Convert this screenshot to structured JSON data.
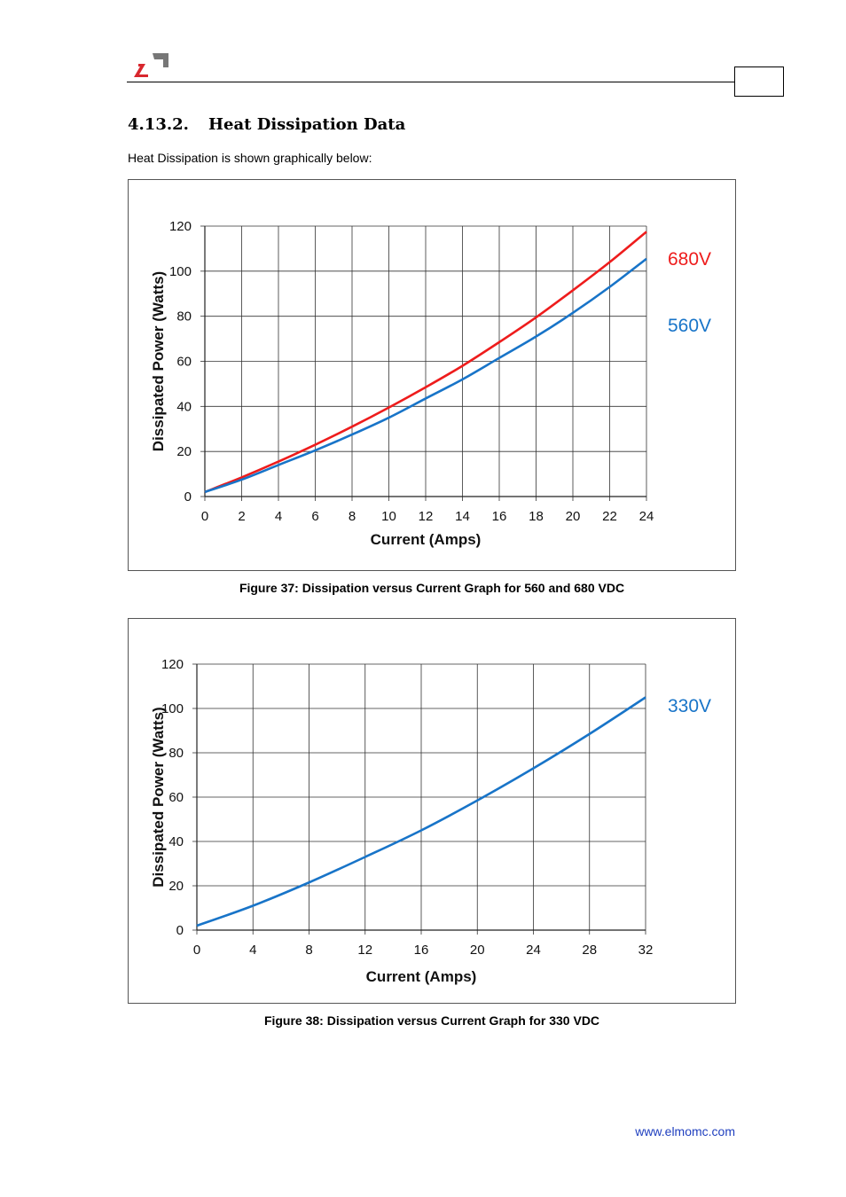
{
  "header": {
    "logo_icon": "elmo-logo-icon",
    "accent_color": "#d8272e",
    "logo_gray": "#777777"
  },
  "section": {
    "number": "4.13.2.",
    "title": "Heat Dissipation Data",
    "intro": "Heat Dissipation is shown graphically below:"
  },
  "captions": {
    "figure37": "Figure 37: Dissipation versus Current Graph for 560 and 680 VDC",
    "figure38": "Figure 38: Dissipation versus Current Graph for 330 VDC"
  },
  "footer": {
    "url": "www.elmomc.com"
  },
  "chart_data": [
    {
      "type": "line",
      "xlabel": "Current (Amps)",
      "ylabel": "Dissipated Power (Watts)",
      "xlim": [
        0,
        24
      ],
      "ylim": [
        0,
        120
      ],
      "xticks": [
        0,
        2,
        4,
        6,
        8,
        10,
        12,
        14,
        16,
        18,
        20,
        22,
        24
      ],
      "yticks": [
        0,
        20,
        40,
        60,
        80,
        100,
        120
      ],
      "grid": true,
      "legend": "right of plot, inline labels",
      "series": [
        {
          "name": "680V",
          "color": "#ee1c1c",
          "x": [
            0,
            2,
            4,
            6,
            8,
            10,
            12,
            14,
            16,
            18,
            20,
            22,
            24
          ],
          "y": [
            2,
            8.5,
            15.5,
            23,
            31,
            39.5,
            48.5,
            58,
            68.5,
            79.5,
            91.5,
            104,
            117.5
          ]
        },
        {
          "name": "560V",
          "color": "#1874c8",
          "x": [
            0,
            2,
            4,
            6,
            8,
            10,
            12,
            14,
            16,
            18,
            20,
            22,
            24
          ],
          "y": [
            2,
            7.5,
            14,
            20.5,
            27.5,
            35,
            43.5,
            52,
            61.5,
            71,
            81.5,
            93,
            105.5
          ]
        }
      ]
    },
    {
      "type": "line",
      "xlabel": "Current (Amps)",
      "ylabel": "Dissipated Power (Watts)",
      "xlim": [
        0,
        32
      ],
      "ylim": [
        0,
        120
      ],
      "xticks": [
        0,
        4,
        8,
        12,
        16,
        20,
        24,
        28,
        32
      ],
      "yticks": [
        0,
        20,
        40,
        60,
        80,
        100,
        120
      ],
      "grid": true,
      "legend": "right of plot, inline label",
      "series": [
        {
          "name": "330V",
          "color": "#1874c8",
          "x": [
            0,
            4,
            8,
            12,
            16,
            20,
            24,
            28,
            32
          ],
          "y": [
            2,
            11,
            21.5,
            33,
            45,
            58.5,
            73,
            88.5,
            105
          ]
        }
      ]
    }
  ]
}
